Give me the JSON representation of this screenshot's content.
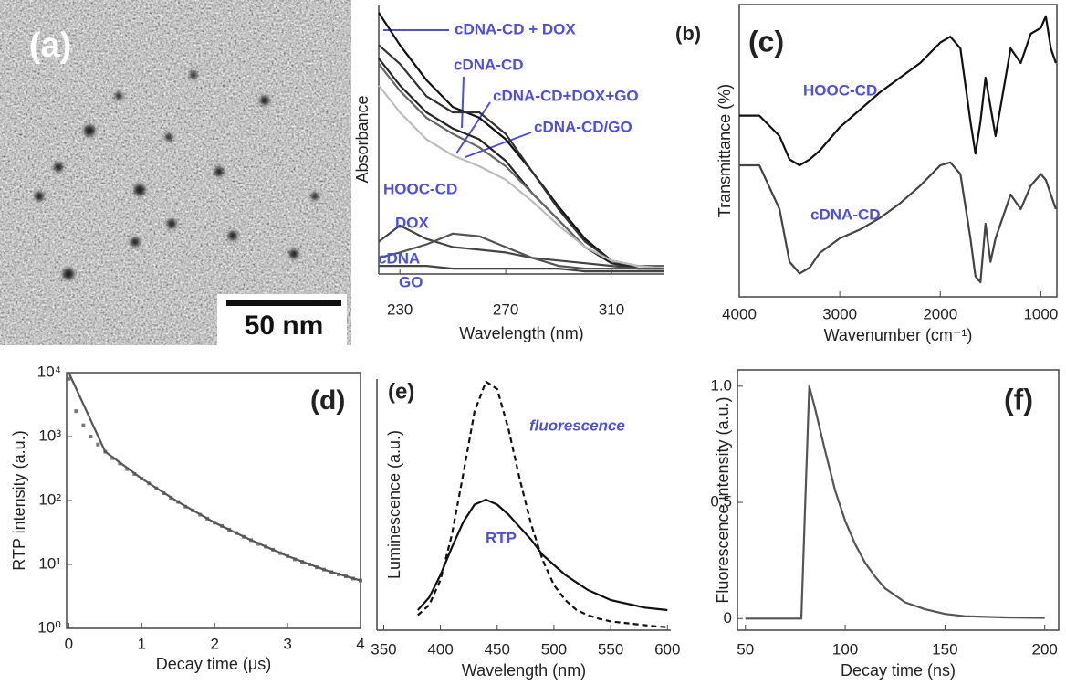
{
  "chart_data": [
    {
      "type": "image",
      "panel_label": "(a)",
      "scale_bar": "50 nm"
    },
    {
      "type": "line",
      "panel_label": "(b)",
      "xlabel": "Wavelength (nm)",
      "ylabel": "Absorbance",
      "xlim": [
        222,
        330
      ],
      "ylim": [
        0,
        1
      ],
      "xticks": [
        230,
        270,
        310
      ],
      "annotation_color": "#4f4fd8",
      "x": [
        222,
        230,
        240,
        250,
        260,
        270,
        280,
        290,
        300,
        310,
        320,
        330
      ],
      "series": [
        {
          "name": "cDNA-CD + DOX",
          "color": "#111111",
          "values": [
            0.97,
            0.85,
            0.72,
            0.62,
            0.58,
            0.5,
            0.38,
            0.25,
            0.13,
            0.05,
            0.02,
            0.02
          ]
        },
        {
          "name": "cDNA-CD",
          "color": "#333333",
          "values": [
            0.85,
            0.78,
            0.66,
            0.6,
            0.6,
            0.52,
            0.38,
            0.24,
            0.12,
            0.05,
            0.02,
            0.02
          ]
        },
        {
          "name": "cDNA-CD+DOX+GO",
          "color": "#222222",
          "values": [
            0.8,
            0.7,
            0.6,
            0.54,
            0.5,
            0.42,
            0.3,
            0.2,
            0.1,
            0.04,
            0.02,
            0.02
          ]
        },
        {
          "name": "cDNA-CD/GO",
          "color": "#666666",
          "values": [
            0.78,
            0.68,
            0.58,
            0.52,
            0.47,
            0.4,
            0.3,
            0.2,
            0.1,
            0.05,
            0.03,
            0.03
          ]
        },
        {
          "name": "HOOC-CD",
          "color": "#bbbbbb",
          "values": [
            0.7,
            0.6,
            0.5,
            0.44,
            0.4,
            0.35,
            0.27,
            0.18,
            0.1,
            0.05,
            0.03,
            0.02
          ]
        },
        {
          "name": "DOX",
          "color": "#444444",
          "values": [
            0.12,
            0.18,
            0.13,
            0.1,
            0.09,
            0.08,
            0.06,
            0.05,
            0.04,
            0.03,
            0.02,
            0.02
          ]
        },
        {
          "name": "cDNA",
          "color": "#555555",
          "values": [
            0.06,
            0.08,
            0.11,
            0.15,
            0.14,
            0.1,
            0.06,
            0.03,
            0.02,
            0.02,
            0.02,
            0.02
          ]
        },
        {
          "name": "GO",
          "color": "#444444",
          "values": [
            0.03,
            0.03,
            0.03,
            0.02,
            0.02,
            0.02,
            0.02,
            0.02,
            0.01,
            0.01,
            0.01,
            0.01
          ]
        }
      ]
    },
    {
      "type": "line",
      "panel_label": "(c)",
      "xlabel": "Wavenumber (cm⁻¹)",
      "ylabel": "Transmittance (%)",
      "xlim": [
        4000,
        840
      ],
      "ylim": [
        0,
        1
      ],
      "xticks": [
        4000,
        3000,
        2000,
        1000
      ],
      "annotation_color": "#4f4fd8",
      "x": [
        4000,
        3800,
        3600,
        3500,
        3400,
        3300,
        3200,
        3000,
        2800,
        2600,
        2400,
        2200,
        2000,
        1900,
        1800,
        1700,
        1650,
        1600,
        1550,
        1500,
        1450,
        1400,
        1300,
        1200,
        1100,
        1000,
        950,
        900,
        850
      ],
      "series": [
        {
          "name": "HOOC-CD",
          "color": "#111111",
          "values": [
            0.62,
            0.62,
            0.55,
            0.47,
            0.45,
            0.47,
            0.5,
            0.58,
            0.64,
            0.7,
            0.75,
            0.8,
            0.87,
            0.89,
            0.85,
            0.6,
            0.49,
            0.6,
            0.75,
            0.65,
            0.55,
            0.65,
            0.85,
            0.8,
            0.9,
            0.92,
            0.96,
            0.85,
            0.8
          ]
        },
        {
          "name": "cDNA-CD",
          "color": "#444444",
          "values": [
            0.45,
            0.45,
            0.3,
            0.12,
            0.08,
            0.1,
            0.15,
            0.2,
            0.23,
            0.27,
            0.32,
            0.38,
            0.45,
            0.46,
            0.42,
            0.2,
            0.07,
            0.05,
            0.25,
            0.12,
            0.2,
            0.25,
            0.35,
            0.3,
            0.38,
            0.42,
            0.4,
            0.35,
            0.3
          ]
        }
      ]
    },
    {
      "type": "line",
      "panel_label": "(d)",
      "xlabel": "Decay time (μs)",
      "ylabel": "RTP intensity (a.u.)",
      "xlim": [
        -0.03,
        4
      ],
      "ylim": [
        1,
        10000
      ],
      "log_y": true,
      "xticks": [
        0,
        1,
        2,
        3,
        4
      ],
      "yticks": [
        {
          "value": 1,
          "label": "10⁰"
        },
        {
          "value": 10,
          "label": "10¹"
        },
        {
          "value": 100,
          "label": "10²"
        },
        {
          "value": 1000,
          "label": "10³"
        },
        {
          "value": 10000,
          "label": "10⁴"
        }
      ],
      "series": [
        {
          "mode": "markers",
          "color": "#777777",
          "x": [
            0,
            0.1,
            0.2,
            0.3,
            0.4,
            0.5,
            0.6,
            0.7,
            0.8,
            0.9,
            1,
            1.1,
            1.2,
            1.3,
            1.4,
            1.5,
            1.6,
            1.7,
            1.8,
            1.9,
            2,
            2.1,
            2.2,
            2.3,
            2.4,
            2.5,
            2.6,
            2.7,
            2.8,
            2.9,
            3,
            3.1,
            3.2,
            3.3,
            3.4,
            3.5,
            3.6,
            3.7,
            3.8,
            3.9,
            4
          ],
          "values": [
            8000,
            2500,
            1500,
            1000,
            750,
            580,
            460,
            380,
            310,
            260,
            220,
            185,
            155,
            130,
            110,
            95,
            80,
            70,
            60,
            52,
            45,
            40,
            35,
            31,
            27,
            24,
            21,
            19,
            17,
            15,
            13.5,
            12,
            11,
            10,
            9,
            8.3,
            7.6,
            7,
            6.5,
            6,
            5.6
          ]
        },
        {
          "mode": "line",
          "color": "#555555",
          "x": [
            0,
            0.5,
            1,
            1.5,
            2,
            2.5,
            3,
            3.5,
            4
          ],
          "values": [
            10000,
            580,
            220,
            95,
            45,
            24,
            13.5,
            8.3,
            5.6
          ]
        }
      ]
    },
    {
      "type": "line",
      "panel_label": "(e)",
      "xlabel": "Wavelength (nm)",
      "ylabel": "Luminescence (a.u.)",
      "xlim": [
        344,
        603
      ],
      "ylim": [
        0,
        1
      ],
      "xticks": [
        350,
        400,
        450,
        500,
        550,
        600
      ],
      "annotation_color": "#4f4fd8",
      "x": [
        380,
        390,
        400,
        410,
        420,
        430,
        440,
        450,
        460,
        470,
        480,
        490,
        500,
        510,
        520,
        530,
        540,
        550,
        560,
        570,
        580,
        590,
        600
      ],
      "series": [
        {
          "name": "fluorescence",
          "color": "#111111",
          "linestyle": "dashed",
          "values": [
            0.06,
            0.1,
            0.2,
            0.38,
            0.62,
            0.87,
            0.99,
            0.96,
            0.8,
            0.6,
            0.42,
            0.28,
            0.18,
            0.12,
            0.08,
            0.06,
            0.045,
            0.035,
            0.03,
            0.025,
            0.02,
            0.015,
            0.012
          ]
        },
        {
          "name": "RTP",
          "color": "#111111",
          "values": [
            0.08,
            0.13,
            0.22,
            0.33,
            0.43,
            0.5,
            0.52,
            0.5,
            0.46,
            0.41,
            0.36,
            0.3,
            0.26,
            0.22,
            0.19,
            0.16,
            0.14,
            0.12,
            0.11,
            0.1,
            0.09,
            0.085,
            0.08
          ]
        }
      ]
    },
    {
      "type": "line",
      "panel_label": "(f)",
      "xlabel": "Decay time (ns)",
      "ylabel": "Fluorescence intensity (a.u.)",
      "xlim": [
        46,
        207
      ],
      "ylim": [
        -0.05,
        1.07
      ],
      "xticks": [
        50,
        100,
        150,
        200
      ],
      "yticks": [
        0,
        0.5,
        {
          "value": 1,
          "label": "1.0"
        }
      ],
      "x": [
        50,
        75,
        78,
        80,
        82,
        85,
        90,
        95,
        100,
        105,
        110,
        115,
        120,
        130,
        140,
        150,
        160,
        180,
        200
      ],
      "series": [
        {
          "color": "#555555",
          "values": [
            0,
            0,
            0,
            0.5,
            1,
            0.9,
            0.72,
            0.55,
            0.42,
            0.32,
            0.24,
            0.18,
            0.13,
            0.07,
            0.04,
            0.02,
            0.01,
            0.005,
            0.003
          ]
        }
      ]
    }
  ]
}
